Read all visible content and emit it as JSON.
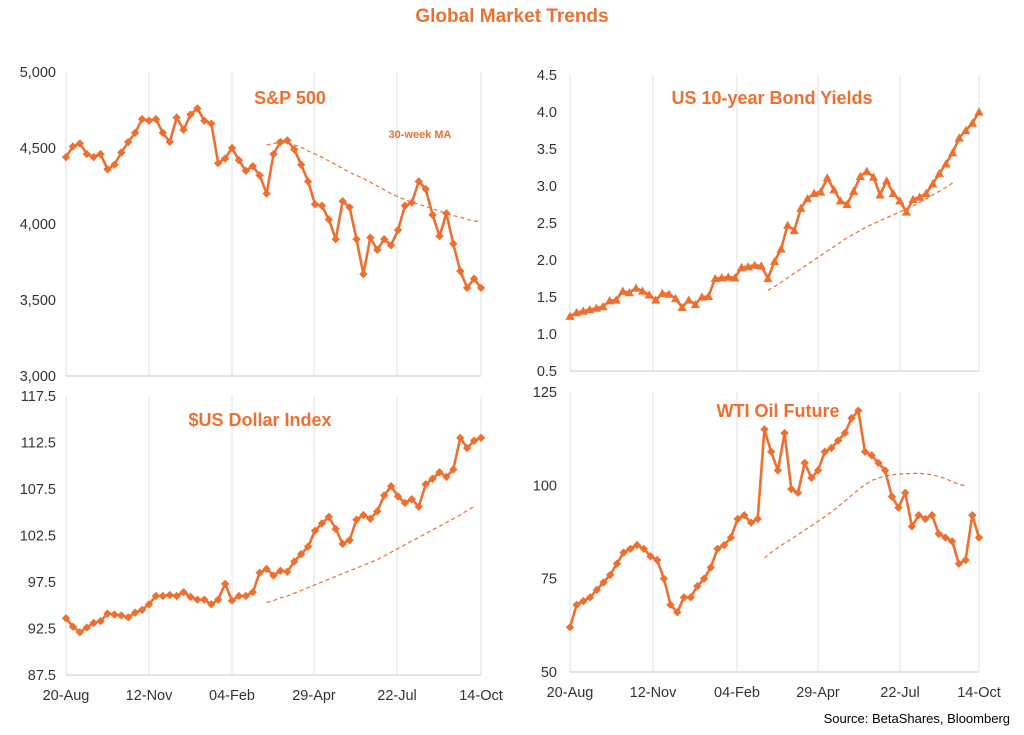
{
  "title": "Global Market Trends",
  "source": "Source: BetaShares, Bloomberg",
  "colors": {
    "series": "#ed7031",
    "grid": "#e2e2e2"
  },
  "chart_data": [
    {
      "type": "line",
      "title": "S&P 500",
      "annotation": "30-week MA",
      "marker": "diamond",
      "ylim": [
        3000,
        5000
      ],
      "yticks": [
        "3,000",
        "3,500",
        "4,000",
        "4,500",
        "5,000"
      ],
      "ytick_values": [
        3000,
        3500,
        4000,
        4500,
        5000
      ],
      "xticks": [],
      "grid": "vertical",
      "series": [
        {
          "values": [
            4440,
            4510,
            4530,
            4460,
            4440,
            4460,
            4360,
            4390,
            4470,
            4540,
            4600,
            4690,
            4680,
            4690,
            4600,
            4540,
            4700,
            4620,
            4720,
            4760,
            4680,
            4660,
            4400,
            4430,
            4500,
            4420,
            4350,
            4380,
            4320,
            4200,
            4460,
            4540,
            4550,
            4490,
            4390,
            4280,
            4130,
            4120,
            4030,
            3900,
            4150,
            4110,
            3900,
            3670,
            3910,
            3830,
            3900,
            3860,
            3960,
            4120,
            4140,
            4280,
            4230,
            4060,
            3920,
            4070,
            3870,
            3690,
            3580,
            3640,
            3580
          ]
        },
        {
          "style": "dashed",
          "start_index": 29,
          "values": [
            4520,
            4530,
            4535,
            4530,
            4520,
            4505,
            4480,
            4460,
            4440,
            4415,
            4390,
            4365,
            4340,
            4320,
            4300,
            4275,
            4250,
            4225,
            4200,
            4180,
            4160,
            4145,
            4130,
            4115,
            4100,
            4085,
            4070,
            4055,
            4045,
            4030,
            4020,
            4015
          ]
        }
      ]
    },
    {
      "type": "line",
      "title": "US 10-year Bond Yields",
      "marker": "triangle",
      "ylim": [
        0.5,
        4.5
      ],
      "yticks": [
        "0.5",
        "1.0",
        "1.5",
        "2.0",
        "2.5",
        "3.0",
        "3.5",
        "4.0",
        "4.5"
      ],
      "ytick_values": [
        0.5,
        1.0,
        1.5,
        2.0,
        2.5,
        3.0,
        3.5,
        4.0,
        4.5
      ],
      "xticks": [],
      "grid": "vertical",
      "series": [
        {
          "values": [
            1.24,
            1.29,
            1.31,
            1.33,
            1.35,
            1.37,
            1.45,
            1.46,
            1.58,
            1.56,
            1.62,
            1.58,
            1.53,
            1.46,
            1.55,
            1.54,
            1.48,
            1.36,
            1.46,
            1.4,
            1.5,
            1.51,
            1.75,
            1.76,
            1.77,
            1.76,
            1.9,
            1.91,
            1.93,
            1.92,
            1.75,
            1.98,
            2.15,
            2.47,
            2.4,
            2.7,
            2.83,
            2.9,
            2.92,
            3.11,
            2.95,
            2.8,
            2.75,
            2.93,
            3.13,
            3.2,
            3.12,
            2.88,
            3.07,
            2.9,
            2.8,
            2.65,
            2.82,
            2.85,
            2.9,
            3.03,
            3.17,
            3.3,
            3.45,
            3.65,
            3.75,
            3.85,
            4.0
          ]
        },
        {
          "style": "dashed",
          "start_index": 30,
          "values": [
            1.59,
            1.64,
            1.7,
            1.76,
            1.82,
            1.88,
            1.94,
            2.0,
            2.06,
            2.12,
            2.18,
            2.24,
            2.3,
            2.35,
            2.4,
            2.45,
            2.49,
            2.53,
            2.57,
            2.61,
            2.65,
            2.69,
            2.73,
            2.78,
            2.83,
            2.88,
            2.93,
            2.98,
            3.04
          ]
        }
      ]
    },
    {
      "type": "line",
      "title": "$US Dollar Index",
      "marker": "diamond",
      "ylim": [
        87.5,
        117.5
      ],
      "yticks": [
        "87.5",
        "92.5",
        "97.5",
        "102.5",
        "107.5",
        "112.5",
        "117.5"
      ],
      "ytick_values": [
        87.5,
        92.5,
        97.5,
        102.5,
        107.5,
        112.5,
        117.5
      ],
      "xticks": [
        "20-Aug",
        "12-Nov",
        "04-Feb",
        "29-Apr",
        "22-Jul",
        "14-Oct"
      ],
      "grid": "vertical",
      "series": [
        {
          "values": [
            93.6,
            92.7,
            92.1,
            92.6,
            93.1,
            93.3,
            94.1,
            94.0,
            93.9,
            93.7,
            94.2,
            94.5,
            95.1,
            96.0,
            96.0,
            96.1,
            96.0,
            96.4,
            95.9,
            95.6,
            95.6,
            95.1,
            95.6,
            97.3,
            95.5,
            96.0,
            96.0,
            96.4,
            98.5,
            98.9,
            98.2,
            98.7,
            98.6,
            99.7,
            100.5,
            101.3,
            103.0,
            103.8,
            104.5,
            103.2,
            101.6,
            102.0,
            104.2,
            104.7,
            104.3,
            105.1,
            106.8,
            107.8,
            106.7,
            106.0,
            106.4,
            105.6,
            108.0,
            108.6,
            109.3,
            108.8,
            109.6,
            113.0,
            111.9,
            112.7,
            113.0
          ]
        },
        {
          "style": "dashed",
          "start_index": 29,
          "values": [
            95.3,
            95.5,
            95.8,
            96.0,
            96.3,
            96.6,
            96.9,
            97.2,
            97.5,
            97.8,
            98.1,
            98.4,
            98.7,
            99.0,
            99.3,
            99.6,
            99.9,
            100.3,
            100.7,
            101.1,
            101.5,
            101.9,
            102.3,
            102.7,
            103.1,
            103.5,
            103.9,
            104.3,
            104.7,
            105.2,
            105.6
          ]
        }
      ]
    },
    {
      "type": "line",
      "title": "WTI Oil Future",
      "marker": "diamond",
      "ylim": [
        50,
        125
      ],
      "yticks": [
        "50",
        "75",
        "100",
        "125"
      ],
      "ytick_values": [
        50,
        75,
        100,
        125
      ],
      "xticks": [
        "20-Aug",
        "12-Nov",
        "04-Feb",
        "29-Apr",
        "22-Jul",
        "14-Oct"
      ],
      "grid": "vertical",
      "series": [
        {
          "values": [
            62,
            68,
            69,
            70,
            72,
            74,
            76,
            79,
            82,
            83,
            84,
            83,
            81,
            80,
            75,
            68,
            66,
            70,
            70,
            73,
            75,
            78,
            83,
            84,
            86,
            91,
            92,
            90,
            91,
            115,
            109,
            104,
            114,
            99,
            98,
            106,
            102,
            104,
            109,
            110,
            112,
            114,
            118,
            120,
            109,
            108,
            106,
            104,
            97,
            94,
            98,
            89,
            92,
            91,
            92,
            87,
            86,
            85,
            79,
            80,
            92,
            86
          ]
        },
        {
          "style": "dashed",
          "start_index": 29,
          "values": [
            80.5,
            82,
            83.3,
            84.5,
            85.6,
            86.8,
            88,
            89.2,
            90.4,
            91.6,
            92.9,
            94.3,
            95.8,
            97.3,
            98.8,
            100.2,
            101.3,
            102,
            102.5,
            102.8,
            103,
            103.1,
            103.2,
            103.2,
            103.1,
            102.8,
            102.4,
            101.8,
            101,
            100.3,
            99.8
          ]
        }
      ]
    }
  ]
}
